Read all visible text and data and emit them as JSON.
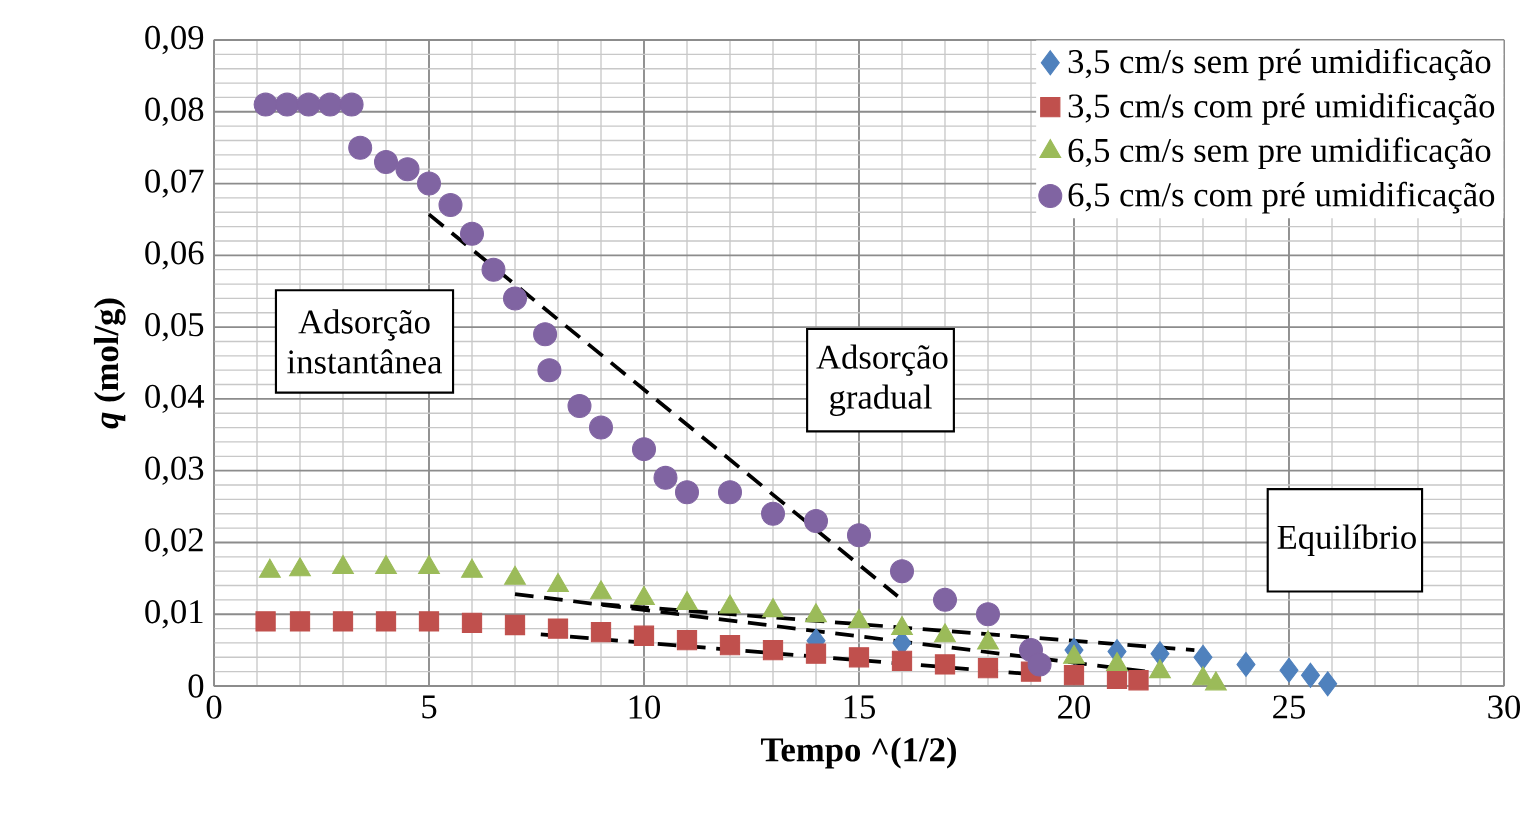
{
  "chart_data": {
    "type": "scatter",
    "xlabel": "Tempo ^(1/2)",
    "ylabel": "*q* (mol/g)",
    "xlim": [
      0,
      30
    ],
    "xticks": [
      0,
      5,
      10,
      15,
      20,
      25,
      30
    ],
    "ylim": [
      0,
      0.09
    ],
    "yticks": [
      0,
      {
        "value": 0.01,
        "label": "0,01"
      },
      {
        "value": 0.02,
        "label": "0,02"
      },
      {
        "value": 0.03,
        "label": "0,03"
      },
      {
        "value": 0.04,
        "label": "0,04"
      },
      {
        "value": 0.05,
        "label": "0,05"
      },
      {
        "value": 0.06,
        "label": "0,06"
      },
      {
        "value": 0.07,
        "label": "0,07"
      },
      {
        "value": 0.08,
        "label": "0,08"
      },
      {
        "value": 0.09,
        "label": "0,09"
      }
    ],
    "grid": true,
    "legend": "top right",
    "series": [
      {
        "name": "3,5 cm/s sem pré umidificação",
        "color": "#4f81bd",
        "marker": "diamond",
        "x": [
          14,
          16,
          20,
          21,
          22,
          23,
          24,
          25,
          25.5,
          25.9
        ],
        "values": [
          0.0063,
          0.006,
          0.005,
          0.0048,
          0.0045,
          0.004,
          0.003,
          0.0022,
          0.0015,
          0.0003
        ]
      },
      {
        "name": "3,5 cm/s com pré umidificação",
        "color": "#c0504d",
        "marker": "square",
        "x": [
          1.2,
          2,
          3,
          4,
          5,
          6,
          7,
          8,
          9,
          10,
          11,
          12,
          13,
          14,
          15,
          16,
          17,
          18,
          19,
          20,
          21,
          21.5
        ],
        "values": [
          0.009,
          0.009,
          0.009,
          0.009,
          0.009,
          0.0088,
          0.0085,
          0.008,
          0.0075,
          0.007,
          0.0064,
          0.0057,
          0.005,
          0.0045,
          0.004,
          0.0035,
          0.003,
          0.0025,
          0.002,
          0.0015,
          0.001,
          0.0008
        ]
      },
      {
        "name": "6,5 cm/s sem pre umidificação",
        "color": "#9bbb59",
        "marker": "triangle",
        "x": [
          1.3,
          2,
          3,
          4,
          5,
          6,
          7,
          8,
          9,
          10,
          11,
          12,
          13,
          14,
          15,
          16,
          17,
          18,
          19,
          20,
          21,
          22,
          23,
          23.3
        ],
        "values": [
          0.016,
          0.0162,
          0.0165,
          0.0165,
          0.0165,
          0.016,
          0.015,
          0.014,
          0.013,
          0.0122,
          0.0115,
          0.011,
          0.0105,
          0.0098,
          0.009,
          0.008,
          0.007,
          0.006,
          null,
          0.004,
          0.003,
          0.002,
          0.001,
          0.0003
        ]
      },
      {
        "name": "6,5 cm/s com pré umidificação",
        "color": "#8064a2",
        "marker": "circle",
        "x": [
          1.2,
          1.7,
          2.2,
          2.7,
          3.2,
          3.4,
          4,
          4.5,
          5,
          5.5,
          6,
          6.5,
          7,
          7.7,
          7.8,
          8.5,
          9,
          10,
          10.5,
          11,
          12,
          13,
          14,
          15,
          16,
          17,
          18,
          19,
          19.2
        ],
        "values": [
          0.081,
          0.081,
          0.081,
          0.081,
          0.081,
          0.075,
          0.073,
          0.072,
          0.07,
          0.067,
          0.063,
          0.058,
          0.054,
          0.049,
          0.044,
          0.039,
          0.036,
          0.033,
          0.029,
          0.027,
          0.027,
          0.024,
          0.023,
          0.021,
          0.016,
          0.012,
          0.01,
          0.005,
          0.003
        ]
      },
      {
        "type": "line",
        "color": "#000000",
        "line_style": "dashed",
        "marker": "none",
        "x": [
          5.0,
          15.9
        ],
        "values": [
          0.0657,
          0.0125
        ]
      },
      {
        "type": "line",
        "color": "#000000",
        "line_style": "dashed",
        "marker": "none",
        "x": [
          7.0,
          21.7
        ],
        "values": [
          0.0128,
          0.002
        ]
      },
      {
        "type": "line",
        "color": "#000000",
        "line_style": "dashed",
        "marker": "none",
        "x": [
          9.0,
          22.8
        ],
        "values": [
          0.0114,
          0.005
        ]
      },
      {
        "type": "line",
        "color": "#000000",
        "line_style": "dashed",
        "marker": "none",
        "x": [
          7.6,
          18.9
        ],
        "values": [
          0.0072,
          0.0017
        ]
      }
    ],
    "annotations": [
      "Adsorção instantânea",
      "Adsorção gradual",
      "Equilíbrio"
    ]
  }
}
